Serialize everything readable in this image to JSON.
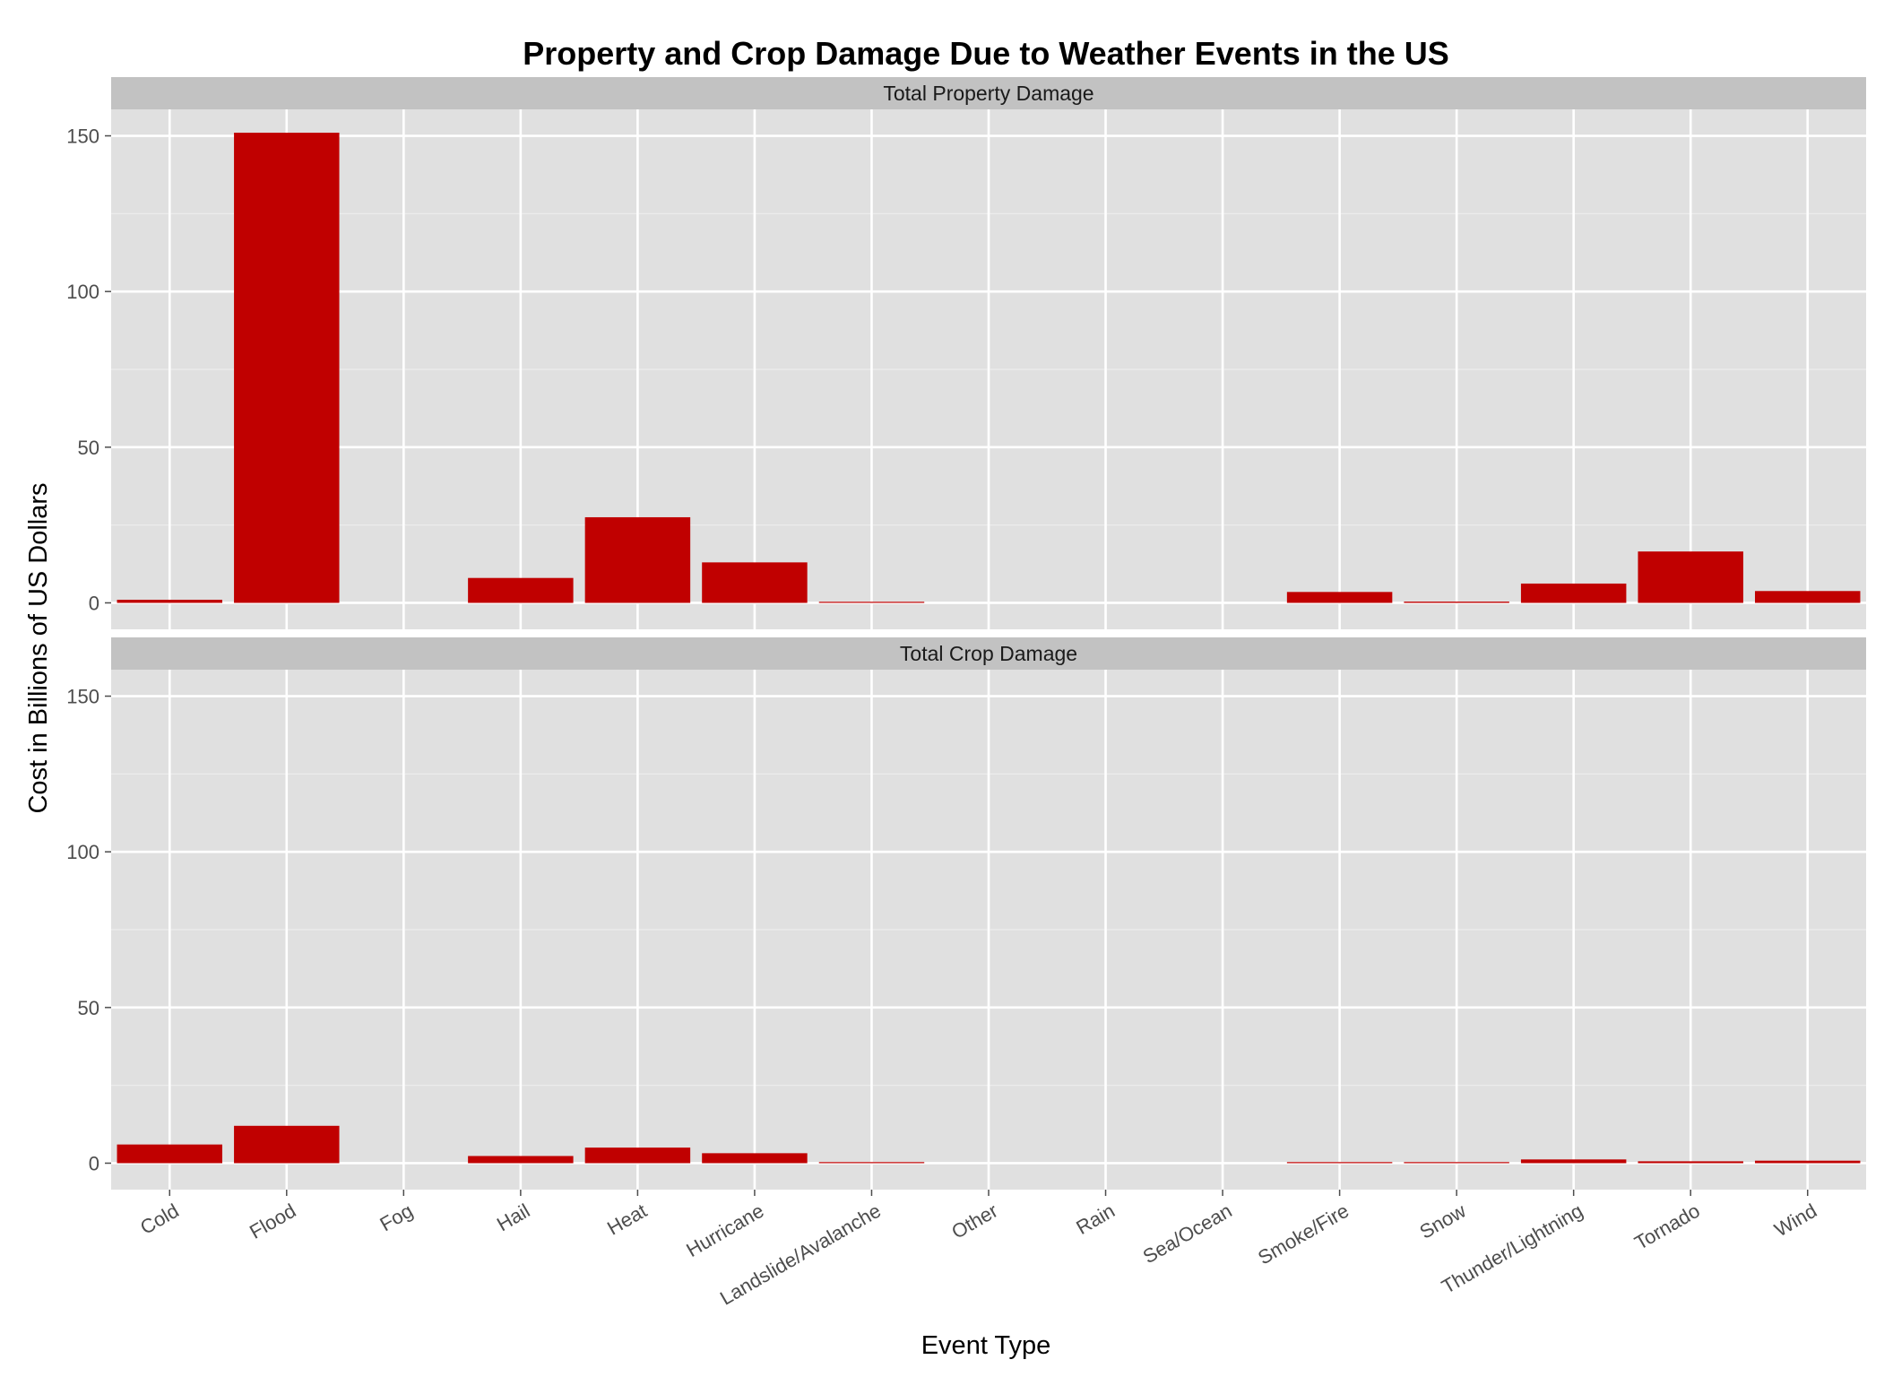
{
  "chart_data": {
    "type": "bar",
    "title": "Property and Crop Damage Due to Weather Events in the US",
    "xlabel": "Event Type",
    "ylabel": "Cost in Billions of US Dollars",
    "categories": [
      "Cold",
      "Flood",
      "Fog",
      "Hail",
      "Heat",
      "Hurricane",
      "Landslide/Avalanche",
      "Other",
      "Rain",
      "Sea/Ocean",
      "Smoke/Fire",
      "Snow",
      "Thunder/Lightning",
      "Tornado",
      "Wind"
    ],
    "ylim": [
      -8.5,
      158.5
    ],
    "yticks": [
      0,
      50,
      100,
      150
    ],
    "grid": true,
    "bar_color": "#c00000",
    "panel_background": "#e0e0e0",
    "strip_background": "#c2c2c2",
    "facets": [
      {
        "name": "Total Property Damage",
        "values": [
          1.0,
          151.0,
          0,
          8.0,
          27.5,
          13.0,
          0.3,
          0,
          0,
          0,
          3.5,
          0.4,
          6.2,
          16.5,
          3.8
        ]
      },
      {
        "name": "Total Crop Damage",
        "values": [
          6.0,
          12.0,
          0,
          2.3,
          5.0,
          3.2,
          0.05,
          0,
          0,
          0,
          0.2,
          0.2,
          1.2,
          0.6,
          0.8
        ]
      }
    ]
  }
}
